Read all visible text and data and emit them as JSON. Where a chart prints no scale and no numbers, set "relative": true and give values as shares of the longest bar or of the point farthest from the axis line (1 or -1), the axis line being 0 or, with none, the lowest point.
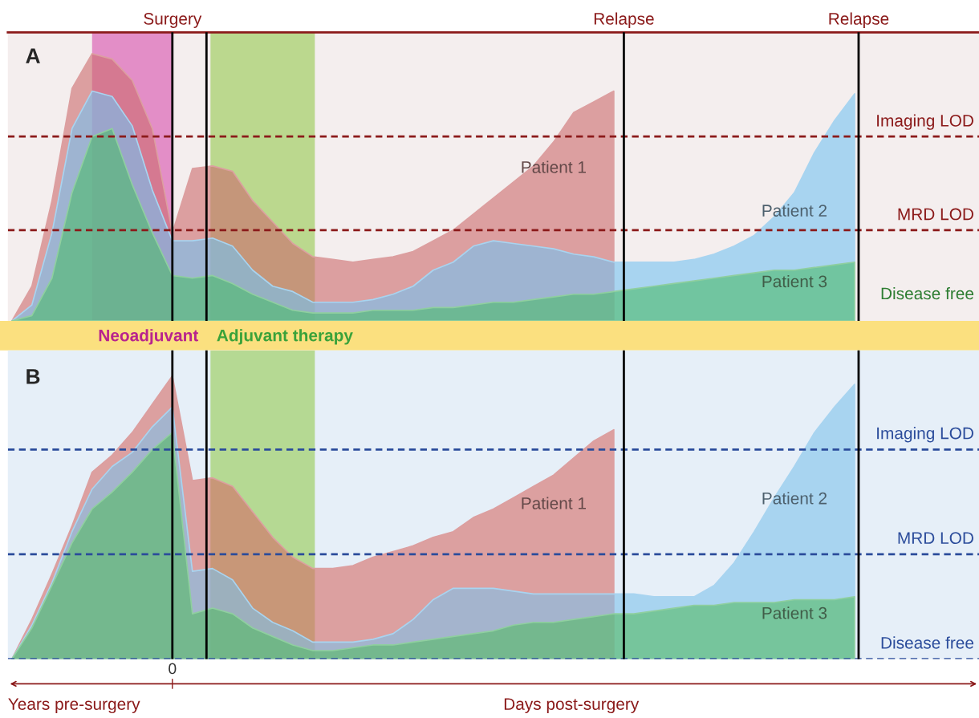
{
  "chart_data": [
    {
      "type": "area",
      "title": "A",
      "relative": true,
      "legend": false,
      "categories": [
        null,
        null,
        null,
        null,
        null,
        null,
        null,
        null,
        null,
        null,
        null,
        null,
        null,
        null,
        null,
        null,
        null,
        null,
        null,
        null,
        null,
        null,
        null,
        null,
        null,
        null,
        null,
        null,
        null,
        null,
        null,
        null,
        null,
        null,
        null,
        null,
        null,
        null,
        null,
        null,
        null,
        null,
        null
      ],
      "series": [
        {
          "name": "Patient 1",
          "color": "#dc9fa0",
          "values": [
            0,
            0.13,
            0.45,
            0.87,
            1,
            0.98,
            0.9,
            0.72,
            0.33,
            0.57,
            0.58,
            0.56,
            0.45,
            0.37,
            0.29,
            0.24,
            0.23,
            0.22,
            0.23,
            0.24,
            0.26,
            0.3,
            0.34,
            0.4,
            0.46,
            0.52,
            0.58,
            0.67,
            0.78,
            0.82,
            0.86,
            null,
            null,
            null,
            null,
            null,
            null,
            null,
            null,
            null,
            null,
            null,
            null
          ]
        },
        {
          "name": "Patient 2",
          "color": "#a8d4f0",
          "values": [
            0,
            0.06,
            0.33,
            0.72,
            0.86,
            0.84,
            0.73,
            0.49,
            0.3,
            0.3,
            0.31,
            0.28,
            0.19,
            0.13,
            0.11,
            0.07,
            0.07,
            0.07,
            0.08,
            0.1,
            0.13,
            0.19,
            0.22,
            0.28,
            0.3,
            0.29,
            0.28,
            0.27,
            0.25,
            0.24,
            0.22,
            0.22,
            0.22,
            0.22,
            0.23,
            0.25,
            0.28,
            0.32,
            0.39,
            0.48,
            0.63,
            0.75,
            0.85
          ]
        },
        {
          "name": "Patient 3",
          "color": "#8fcf9f",
          "values": [
            0,
            0.02,
            0.16,
            0.48,
            0.69,
            0.72,
            0.51,
            0.33,
            0.17,
            0.16,
            0.17,
            0.14,
            0.1,
            0.07,
            0.04,
            0.03,
            0.03,
            0.03,
            0.04,
            0.04,
            0.04,
            0.05,
            0.05,
            0.06,
            0.07,
            0.07,
            0.08,
            0.09,
            0.1,
            0.1,
            0.11,
            0.12,
            0.13,
            0.14,
            0.15,
            0.16,
            0.17,
            0.18,
            0.19,
            0.19,
            0.2,
            0.21,
            0.22
          ]
        }
      ],
      "ref_lines": [
        {
          "axis": "y",
          "value": 0.69,
          "label": "Imaging LOD",
          "color": "#8b1a1a",
          "line_style": "dashed"
        },
        {
          "axis": "y",
          "value": 0.34,
          "label": "MRD LOD",
          "color": "#8b1a1a",
          "line_style": "dashed"
        }
      ],
      "annotations": [
        "Surgery",
        "Relapse",
        "Relapse",
        "Neoadjuvant",
        "Adjuvant therapy",
        "Disease free"
      ]
    },
    {
      "type": "area",
      "title": "B",
      "relative": true,
      "legend": false,
      "categories": [
        null,
        null,
        null,
        null,
        null,
        null,
        null,
        null,
        null,
        null,
        null,
        null,
        null,
        null,
        null,
        null,
        null,
        null,
        null,
        null,
        null,
        null,
        null,
        null,
        null,
        null,
        null,
        null,
        null,
        null,
        null,
        null,
        null,
        null,
        null,
        null,
        null,
        null,
        null,
        null,
        null,
        null,
        null
      ],
      "xlabel": "Days post-surgery",
      "series": [
        {
          "name": "Patient 1",
          "color": "#dc9fa0",
          "values": [
            0,
            0.14,
            0.3,
            0.47,
            0.66,
            0.72,
            0.8,
            0.9,
            1,
            0.63,
            0.64,
            0.61,
            0.52,
            0.43,
            0.36,
            0.32,
            0.32,
            0.33,
            0.36,
            0.38,
            0.4,
            0.43,
            0.45,
            0.5,
            0.53,
            0.57,
            0.61,
            0.65,
            0.71,
            0.77,
            0.81,
            null,
            null,
            null,
            null,
            null,
            null,
            null,
            null,
            null,
            null,
            null,
            null
          ]
        },
        {
          "name": "Patient 2",
          "color": "#a8d4f0",
          "values": [
            0,
            0.12,
            0.27,
            0.45,
            0.6,
            0.68,
            0.73,
            0.82,
            0.89,
            0.31,
            0.32,
            0.28,
            0.18,
            0.13,
            0.1,
            0.06,
            0.06,
            0.06,
            0.07,
            0.09,
            0.14,
            0.21,
            0.25,
            0.25,
            0.25,
            0.24,
            0.23,
            0.23,
            0.23,
            0.23,
            0.23,
            0.23,
            0.22,
            0.22,
            0.22,
            0.26,
            0.34,
            0.45,
            0.57,
            0.68,
            0.8,
            0.89,
            0.97
          ]
        },
        {
          "name": "Patient 3",
          "color": "#8fcf9f",
          "values": [
            0,
            0.11,
            0.26,
            0.41,
            0.53,
            0.59,
            0.66,
            0.74,
            0.8,
            0.16,
            0.18,
            0.16,
            0.11,
            0.08,
            0.05,
            0.03,
            0.03,
            0.04,
            0.05,
            0.05,
            0.06,
            0.07,
            0.08,
            0.09,
            0.1,
            0.12,
            0.13,
            0.13,
            0.14,
            0.15,
            0.16,
            0.16,
            0.17,
            0.18,
            0.19,
            0.19,
            0.2,
            0.2,
            0.2,
            0.21,
            0.21,
            0.21,
            0.22
          ]
        }
      ],
      "ref_lines": [
        {
          "axis": "y",
          "value": 0.74,
          "label": "Imaging LOD",
          "color": "#2b4c9b",
          "line_style": "dashed"
        },
        {
          "axis": "y",
          "value": 0.37,
          "label": "MRD LOD",
          "color": "#2b4c9b",
          "line_style": "dashed"
        },
        {
          "axis": "y",
          "value": 0,
          "label": "Disease free",
          "color": "#2b4c9b",
          "line_style": "dashed"
        }
      ],
      "annotations": [
        "0",
        "Years pre-surgery"
      ]
    }
  ]
}
